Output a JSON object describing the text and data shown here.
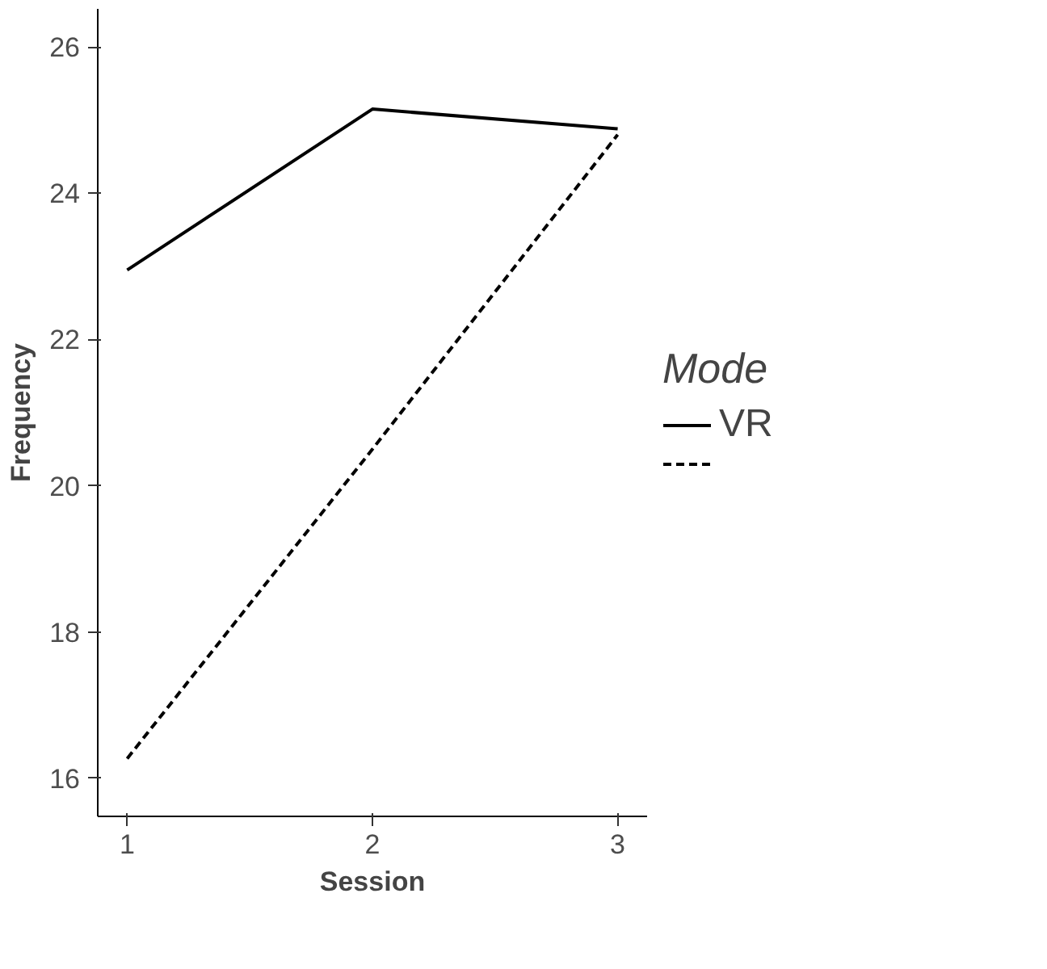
{
  "chart_data": {
    "type": "line",
    "xlabel": "Session",
    "ylabel": "Frequency",
    "legend_title": "Mode",
    "x": [
      1,
      2,
      3
    ],
    "series": [
      {
        "name": "VR",
        "color": "#000000",
        "line_style": "solid",
        "values": [
          22.95,
          25.15,
          24.88
        ]
      },
      {
        "color": "#000000",
        "line_style": "dashed",
        "values": [
          16.27,
          20.5,
          24.8
        ]
      }
    ],
    "xlim": [
      0.88,
      3.12
    ],
    "ylim": [
      15.48,
      26.52
    ],
    "xticks": [
      1,
      2,
      3
    ],
    "yticks": [
      16,
      18,
      20,
      22,
      24,
      26
    ],
    "grid": false,
    "legend": "right",
    "marker": "none"
  }
}
